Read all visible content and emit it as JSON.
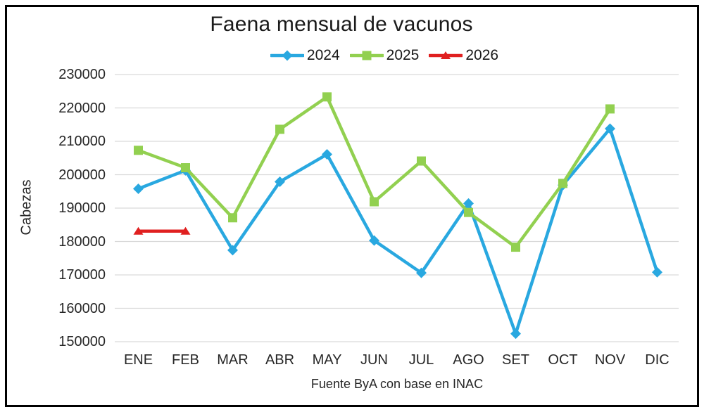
{
  "chart_data": {
    "type": "line",
    "title": "Faena mensual de vacunos",
    "ylabel": "Cabezas",
    "xlabel": "Fuente ByA con base en INAC",
    "categories": [
      "ENE",
      "FEB",
      "MAR",
      "ABR",
      "MAY",
      "JUN",
      "JUL",
      "AGO",
      "SET",
      "OCT",
      "NOV",
      "DIC"
    ],
    "y_ticks": [
      "230000",
      "220000",
      "210000",
      "200000",
      "190000",
      "180000",
      "170000",
      "160000",
      "150000"
    ],
    "ylim": [
      150000,
      230000
    ],
    "ytick_step": 10000,
    "grid": "horizontal",
    "grid_color": "#D9D9D9",
    "legend_position": "top",
    "series": [
      {
        "name": "2024",
        "color": "#29A8E0",
        "marker": "diamond",
        "values": [
          195800,
          201300,
          177400,
          197900,
          206100,
          180300,
          170600,
          191400,
          152400,
          196900,
          213800,
          170800
        ]
      },
      {
        "name": "2025",
        "color": "#92D050",
        "marker": "square",
        "values": [
          207300,
          202100,
          187100,
          213600,
          223300,
          191900,
          204100,
          188700,
          178300,
          197400,
          219700,
          null
        ]
      },
      {
        "name": "2026",
        "color": "#E02020",
        "marker": "triangle",
        "values": [
          183100,
          183100,
          null,
          null,
          null,
          null,
          null,
          null,
          null,
          null,
          null,
          null
        ]
      }
    ]
  }
}
